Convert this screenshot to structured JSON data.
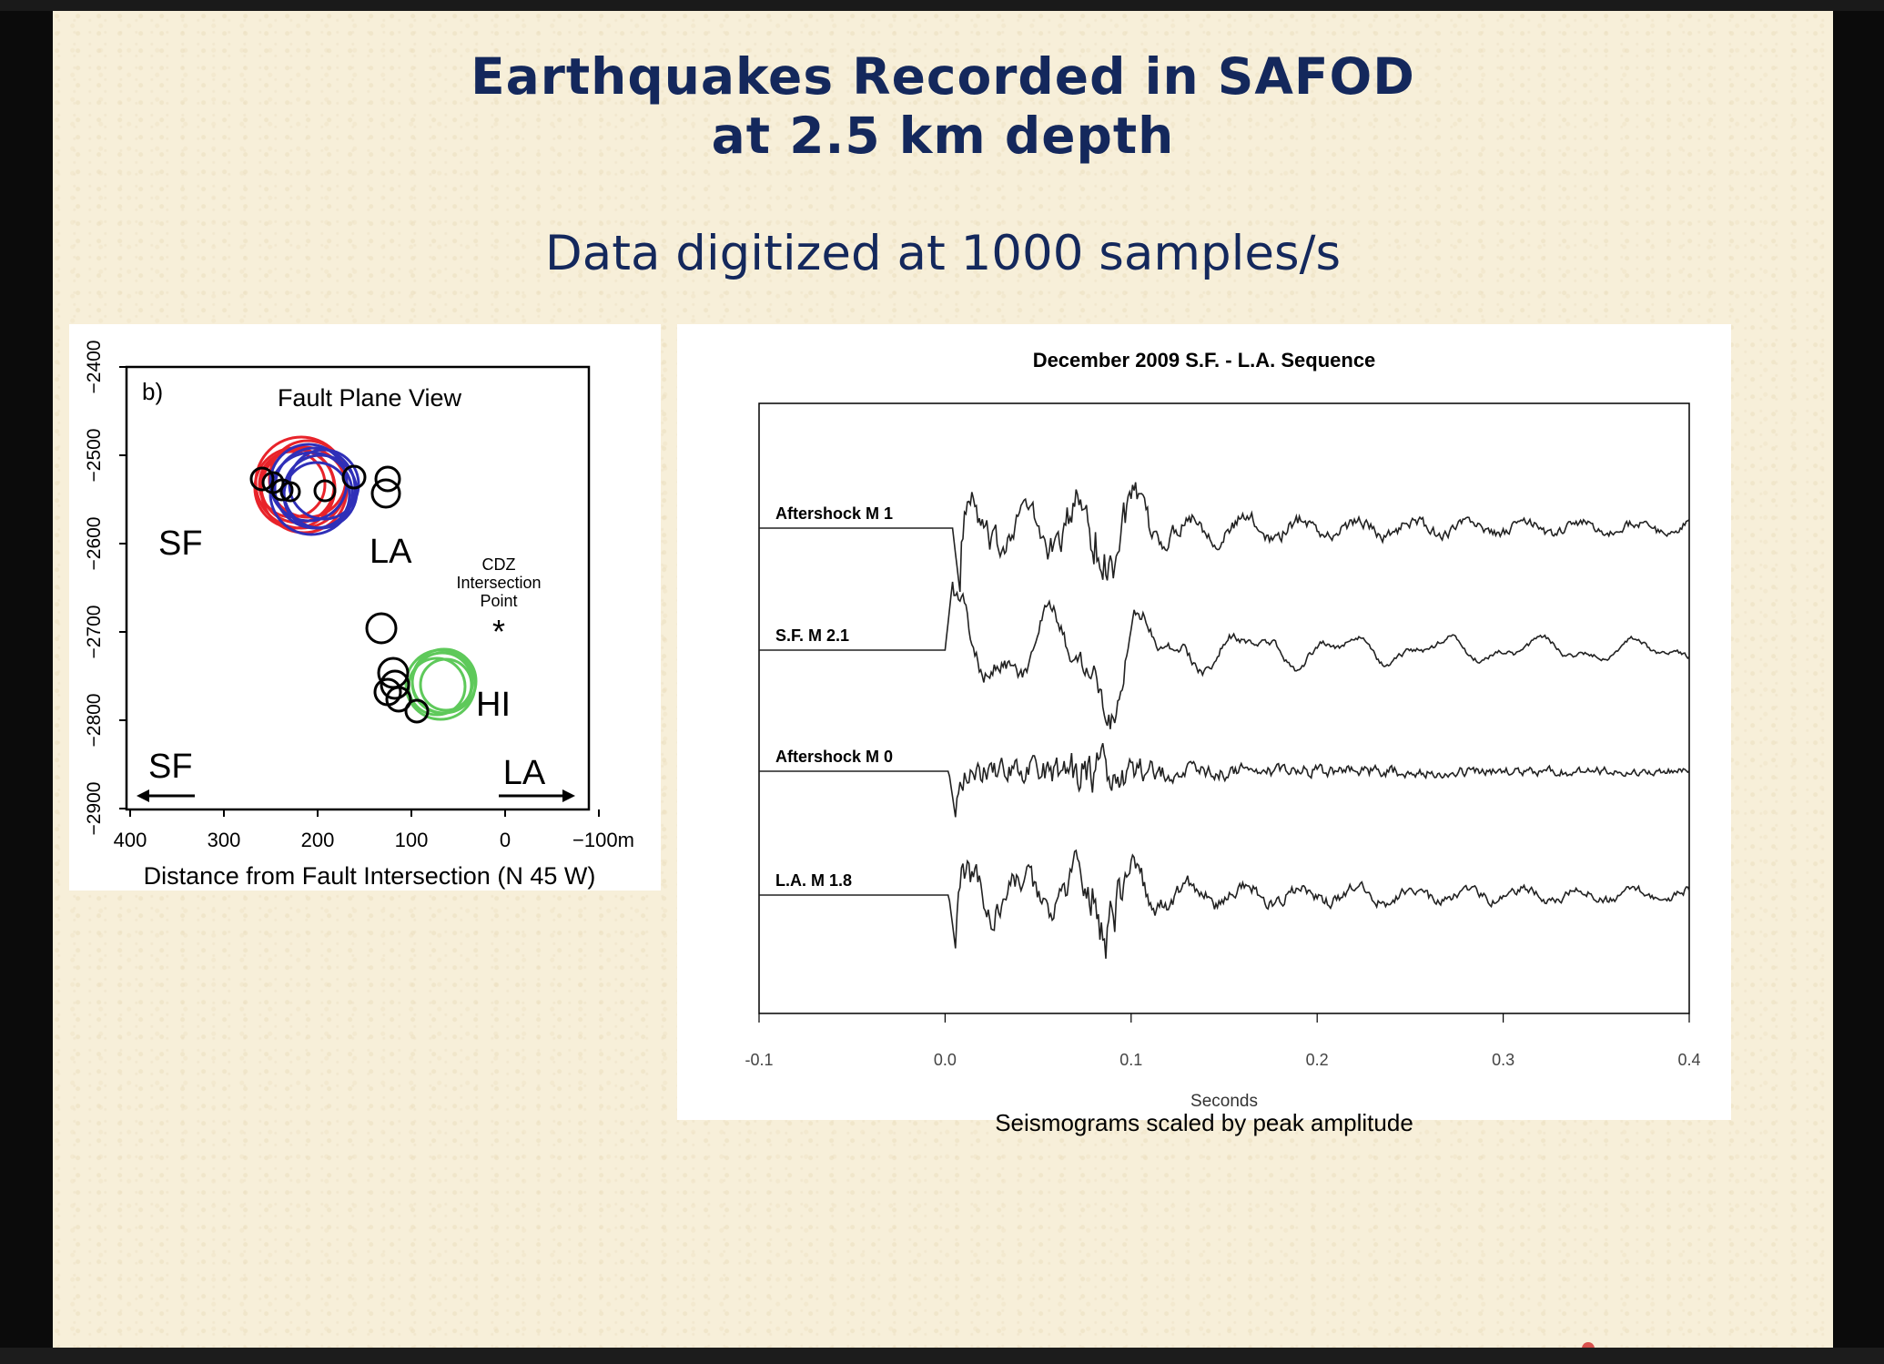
{
  "slide": {
    "title_line1": "Earthquakes Recorded in SAFOD",
    "title_line2": "at 2.5 km depth",
    "subtitle": "Data digitized at 1000 samples/s",
    "caption": "Seismograms scaled by peak amplitude"
  },
  "fault_plot": {
    "panel_label": "b)",
    "title": "Fault Plane View",
    "xlabel": "Distance from Fault Intersection (N 45 W)",
    "x_ticks": [
      "400",
      "300",
      "200",
      "100",
      "0",
      "−100m"
    ],
    "y_ticks": [
      "−2400",
      "−2500",
      "−2600",
      "−2700",
      "−2800",
      "−2900"
    ],
    "labels": {
      "sf": "SF",
      "la": "LA",
      "hi": "HI",
      "cdz": [
        "CDZ",
        "Intersection",
        "Point"
      ],
      "star": "*"
    },
    "arrow_left_label": "SF",
    "arrow_right_label": "LA",
    "colors": {
      "sf": "#e8232a",
      "la": "#2f2fb8",
      "hi": "#5ec95a",
      "other": "#000000"
    }
  },
  "chart_data": {
    "type": "line",
    "title": "December 2009 S.F. - L.A. Sequence",
    "xlabel": "Seconds",
    "xlim": [
      -0.1,
      0.4
    ],
    "x_ticks": [
      "-0.1",
      "0.0",
      "0.1",
      "0.2",
      "0.3",
      "0.4"
    ],
    "series": [
      {
        "name": "Aftershock M 1",
        "onset": 0.004,
        "style": "moderate"
      },
      {
        "name": "S.F. M 2.1",
        "onset": 0.0,
        "style": "smooth"
      },
      {
        "name": "Aftershock M 0",
        "onset": 0.002,
        "style": "noisy"
      },
      {
        "name": "L.A. M 1.8",
        "onset": 0.002,
        "style": "moderate"
      }
    ]
  }
}
